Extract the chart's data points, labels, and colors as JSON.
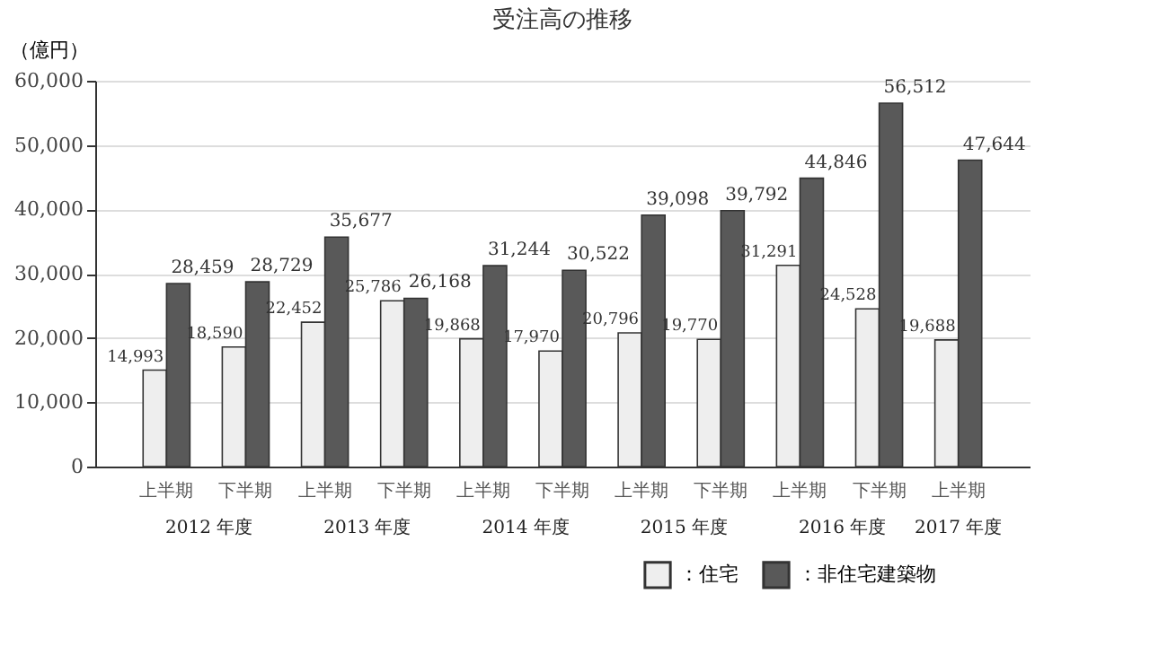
{
  "chart_data": {
    "type": "bar",
    "title": "受注高の推移",
    "ylabel": "（億円）",
    "categories": [
      "上半期",
      "下半期",
      "上半期",
      "下半期",
      "上半期",
      "下半期",
      "上半期",
      "下半期",
      "上半期",
      "下半期",
      "上半期"
    ],
    "series": [
      {
        "name": "：住宅",
        "color": "#eeeeee",
        "values": [
          14993,
          18590,
          22452,
          25786,
          19868,
          17970,
          20796,
          19770,
          31291,
          24528,
          19688
        ],
        "value_labels": [
          "14,993",
          "18,590",
          "22,452",
          "25,786",
          "19,868",
          "17,970",
          "20,796",
          "19,770",
          "31,291",
          "24,528",
          "19,688"
        ]
      },
      {
        "name": "：非住宅建築物",
        "color": "#595959",
        "values": [
          28459,
          28729,
          35677,
          26168,
          31244,
          30522,
          39098,
          39792,
          44846,
          56512,
          47644
        ],
        "value_labels": [
          "28,459",
          "28,729",
          "35,677",
          "26,168",
          "31,244",
          "30,522",
          "39,098",
          "39,792",
          "44,846",
          "56,512",
          "47,644"
        ]
      }
    ],
    "ylim": [
      0,
      60000
    ],
    "yticks": [
      {
        "value": 0,
        "label": "0"
      },
      {
        "value": 10000,
        "label": "10,000"
      },
      {
        "value": 20000,
        "label": "20,000"
      },
      {
        "value": 30000,
        "label": "30,000"
      },
      {
        "value": 40000,
        "label": "40,000"
      },
      {
        "value": 50000,
        "label": "50,000"
      },
      {
        "value": 60000,
        "label": "60,000"
      }
    ],
    "annotations": [
      "2012 年度",
      "2013 年度",
      "2014 年度",
      "2015 年度",
      "2016 年度",
      "2017 年度"
    ],
    "grid": "y",
    "legend": "bottom right"
  }
}
